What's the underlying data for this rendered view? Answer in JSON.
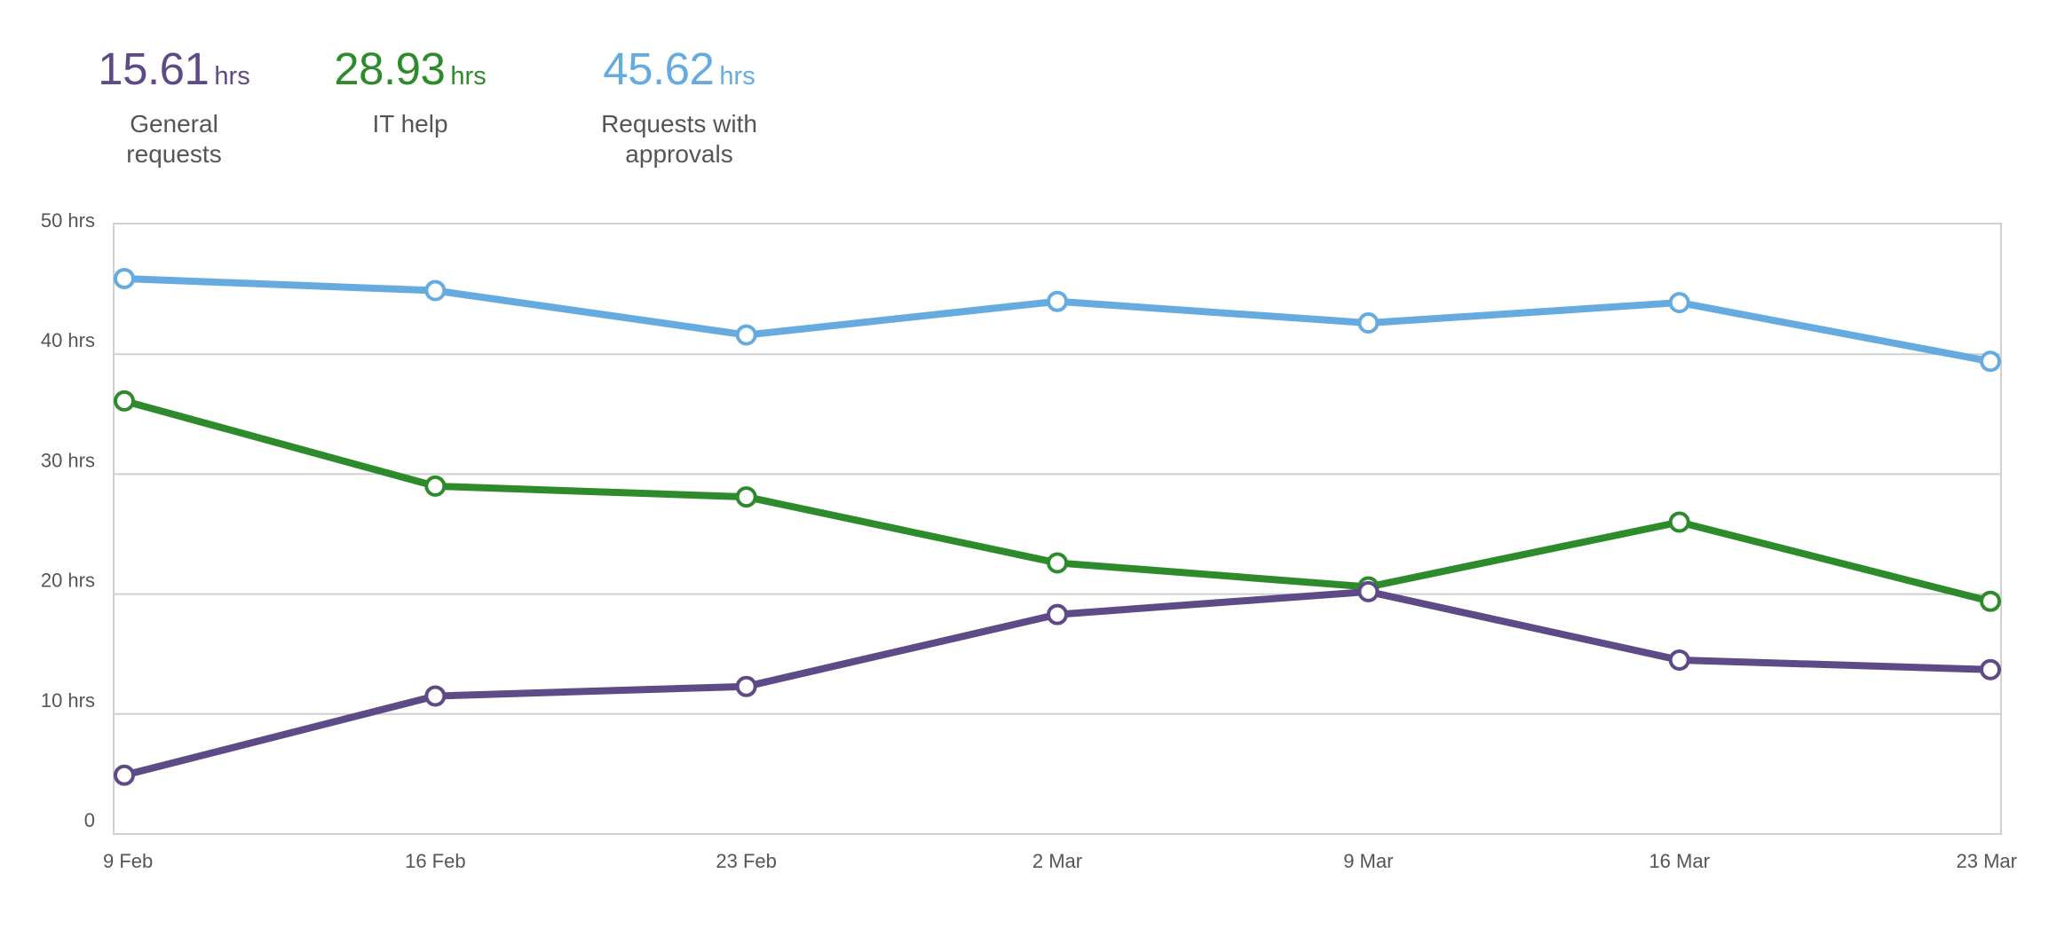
{
  "summary": {
    "stats": [
      {
        "value": "15.61",
        "unit": "hrs",
        "label_lines": [
          "General",
          "requests"
        ],
        "color": "#5e4a86"
      },
      {
        "value": "28.93",
        "unit": "hrs",
        "label_lines": [
          "IT help",
          ""
        ],
        "color": "#2e8b2b"
      },
      {
        "value": "45.62",
        "unit": "hrs",
        "label_lines": [
          "Requests with",
          "approvals"
        ],
        "color": "#66abe0"
      }
    ]
  },
  "chart_data": {
    "type": "line",
    "categories": [
      "9 Feb",
      "16 Feb",
      "23 Feb",
      "2 Mar",
      "9 Mar",
      "16 Mar",
      "23 Mar"
    ],
    "ylim": [
      0,
      50
    ],
    "yticks": [
      {
        "value": 0,
        "label": "0"
      },
      {
        "value": 10,
        "label": "10 hrs"
      },
      {
        "value": 20,
        "label": "20 hrs"
      },
      {
        "value": 30,
        "label": "30 hrs"
      },
      {
        "value": 40,
        "label": "40 hrs"
      },
      {
        "value": 50,
        "label": "50 hrs"
      }
    ],
    "grid": true,
    "series": [
      {
        "name": "Requests with approvals",
        "color": "#66abe0",
        "values": [
          46.3,
          45.3,
          41.6,
          44.4,
          42.6,
          44.3,
          39.4
        ]
      },
      {
        "name": "IT help",
        "color": "#2e8b2b",
        "values": [
          36.1,
          29.0,
          28.1,
          22.6,
          20.6,
          26.0,
          19.4
        ]
      },
      {
        "name": "General requests",
        "color": "#5e4a86",
        "values": [
          4.9,
          11.5,
          12.3,
          18.3,
          20.2,
          14.5,
          13.7
        ]
      }
    ]
  }
}
